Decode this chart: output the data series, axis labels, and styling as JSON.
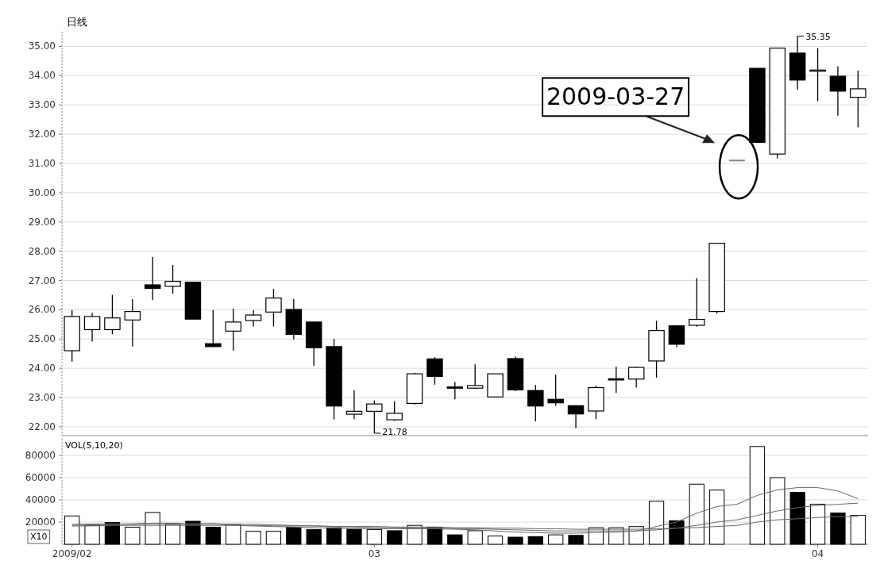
{
  "chart_data": [
    {
      "type": "candlestick",
      "title": "日线",
      "categories": [
        null,
        null,
        null,
        null,
        null,
        null,
        null,
        null,
        null,
        null,
        null,
        null,
        null,
        null,
        null,
        null,
        null,
        null,
        null,
        null,
        null,
        null,
        null,
        null,
        null,
        null,
        null,
        null,
        null,
        null,
        null,
        null,
        null,
        null,
        null,
        null,
        null,
        null,
        null,
        null
      ],
      "ohlc": [
        [
          24.6,
          25.99,
          24.23,
          25.77
        ],
        [
          25.32,
          25.89,
          24.91,
          25.77
        ],
        [
          25.32,
          26.51,
          25.16,
          25.72
        ],
        [
          25.65,
          26.36,
          24.74,
          25.94
        ],
        [
          26.85,
          27.8,
          26.33,
          26.73
        ],
        [
          26.8,
          27.53,
          26.55,
          26.97
        ],
        [
          26.94,
          26.94,
          25.68,
          25.68
        ],
        [
          24.84,
          25.99,
          24.72,
          24.74
        ],
        [
          25.27,
          26.04,
          24.6,
          25.58
        ],
        [
          25.63,
          25.99,
          25.43,
          25.82
        ],
        [
          25.92,
          26.71,
          25.43,
          26.4
        ],
        [
          26.01,
          26.36,
          24.98,
          25.16
        ],
        [
          25.58,
          25.58,
          24.08,
          24.7
        ],
        [
          24.74,
          25.01,
          22.25,
          22.71
        ],
        [
          22.43,
          23.25,
          22.26,
          22.53
        ],
        [
          22.53,
          22.9,
          21.78,
          22.78
        ],
        [
          22.24,
          22.87,
          22.2,
          22.46
        ],
        [
          22.8,
          23.85,
          22.76,
          23.81
        ],
        [
          24.32,
          24.38,
          23.44,
          23.72
        ],
        [
          23.34,
          23.53,
          22.94,
          23.3
        ],
        [
          23.32,
          24.13,
          23.3,
          23.41
        ],
        [
          23.02,
          23.81,
          23.02,
          23.81
        ],
        [
          24.33,
          24.4,
          23.22,
          23.26
        ],
        [
          23.24,
          23.43,
          22.19,
          22.71
        ],
        [
          22.94,
          23.78,
          22.72,
          22.82
        ],
        [
          22.72,
          22.74,
          21.95,
          22.44
        ],
        [
          22.54,
          23.41,
          22.26,
          23.34
        ],
        [
          23.62,
          24.05,
          23.16,
          23.58
        ],
        [
          23.63,
          24.05,
          23.34,
          24.03
        ],
        [
          24.25,
          25.62,
          23.68,
          25.29
        ],
        [
          25.45,
          25.47,
          24.72,
          24.82
        ],
        [
          25.47,
          27.08,
          25.42,
          25.67
        ],
        [
          25.94,
          28.27,
          25.87,
          28.27
        ],
        [
          31.1,
          31.1,
          31.1,
          31.1
        ],
        [
          34.25,
          34.25,
          31.72,
          31.72
        ],
        [
          31.32,
          34.94,
          31.17,
          34.94
        ],
        [
          34.77,
          35.35,
          33.52,
          33.85
        ],
        [
          34.17,
          34.94,
          33.13,
          34.17
        ],
        [
          33.98,
          34.32,
          32.63,
          33.47
        ],
        [
          33.26,
          34.17,
          32.23,
          33.55
        ]
      ],
      "colors": [
        "#ffffff",
        "#ffffff",
        "#ffffff",
        "#ffffff",
        "#000000",
        "#ffffff",
        "#000000",
        "#000000",
        "#ffffff",
        "#ffffff",
        "#ffffff",
        "#000000",
        "#000000",
        "#000000",
        "#ffffff",
        "#ffffff",
        "#ffffff",
        "#ffffff",
        "#000000",
        "#000000",
        "#ffffff",
        "#ffffff",
        "#000000",
        "#000000",
        "#000000",
        "#000000",
        "#ffffff",
        "#000000",
        "#ffffff",
        "#ffffff",
        "#000000",
        "#ffffff",
        "#ffffff",
        "#888888",
        "#000000",
        "#ffffff",
        "#000000",
        "#ffffff",
        "#000000",
        "#ffffff"
      ],
      "ylim": [
        21.7,
        35.5
      ],
      "yticks": [
        {
          "value": 22,
          "label": "22.00"
        },
        {
          "value": 23,
          "label": "23.00"
        },
        {
          "value": 24,
          "label": "24.00"
        },
        {
          "value": 25,
          "label": "25.00"
        },
        {
          "value": 26,
          "label": "26.00"
        },
        {
          "value": 27,
          "label": "27.00"
        },
        {
          "value": 28,
          "label": "28.00"
        },
        {
          "value": 29,
          "label": "29.00"
        },
        {
          "value": 30,
          "label": "30.00"
        },
        {
          "value": 31,
          "label": "31.00"
        },
        {
          "value": 32,
          "label": "32.00"
        },
        {
          "value": 33,
          "label": "33.00"
        },
        {
          "value": 34,
          "label": "34.00"
        },
        {
          "value": 35,
          "label": "35.00"
        }
      ],
      "grid": "y",
      "tick_labels": "y",
      "annotations": [
        "2009-03-27",
        "35.35",
        "21.78"
      ]
    },
    {
      "type": "bar",
      "categories": [
        "2009/02",
        null,
        null,
        null,
        null,
        null,
        null,
        null,
        null,
        null,
        null,
        null,
        null,
        null,
        null,
        "03",
        null,
        null,
        null,
        null,
        null,
        null,
        null,
        null,
        null,
        null,
        null,
        null,
        null,
        null,
        null,
        null,
        null,
        null,
        null,
        null,
        null,
        "04",
        null,
        null
      ],
      "series": [
        {
          "type": "bar",
          "values": [
            25500,
            17000,
            19600,
            15400,
            28600,
            18000,
            20700,
            15400,
            18000,
            11700,
            11700,
            15400,
            13300,
            14900,
            13800,
            13300,
            12200,
            17000,
            15400,
            8500,
            12200,
            7400,
            6400,
            6900,
            8500,
            8000,
            14900,
            14900,
            15900,
            38700,
            21200,
            54100,
            48800,
            null,
            88000,
            60000,
            46700,
            36100,
            28100,
            26000
          ],
          "colors": [
            "#ffffff",
            "#ffffff",
            "#000000",
            "#ffffff",
            "#ffffff",
            "#ffffff",
            "#000000",
            "#000000",
            "#ffffff",
            "#ffffff",
            "#ffffff",
            "#000000",
            "#000000",
            "#000000",
            "#000000",
            "#ffffff",
            "#000000",
            "#ffffff",
            "#000000",
            "#000000",
            "#ffffff",
            "#ffffff",
            "#000000",
            "#000000",
            "#ffffff",
            "#000000",
            "#ffffff",
            "#ffffff",
            "#ffffff",
            "#ffffff",
            "#000000",
            "#ffffff",
            "#ffffff",
            null,
            "#ffffff",
            "#ffffff",
            "#000000",
            "#ffffff",
            "#000000",
            "#ffffff"
          ]
        },
        {
          "type": "line",
          "color": "#666666",
          "values": [
            17000,
            17500,
            18000,
            18500,
            19000,
            19000,
            18000,
            18500,
            17000,
            16500,
            16000,
            15500,
            15000,
            14500,
            14000,
            14000,
            14000,
            14000,
            14000,
            13500,
            13000,
            12000,
            11000,
            10500,
            10000,
            10000,
            10500,
            11000,
            12000,
            16000,
            20000,
            28000,
            34000,
            36000,
            44000,
            49000,
            51000,
            51000,
            48000,
            41000
          ]
        },
        {
          "type": "line",
          "color": "#666666",
          "values": [
            18000,
            18200,
            18400,
            18000,
            18500,
            18500,
            18500,
            18500,
            18000,
            18000,
            17500,
            17000,
            16500,
            16000,
            15500,
            15000,
            15000,
            14500,
            14500,
            14000,
            14000,
            13500,
            13000,
            12500,
            12000,
            12000,
            12000,
            12000,
            12000,
            13000,
            14500,
            17000,
            20000,
            22000,
            26000,
            30000,
            33000,
            35000,
            36000,
            37000
          ]
        },
        {
          "type": "line",
          "color": "#666666",
          "values": [
            16500,
            16500,
            17000,
            17000,
            17000,
            17000,
            17000,
            17000,
            17000,
            17000,
            16500,
            16500,
            16500,
            16000,
            16000,
            16000,
            15500,
            15500,
            15500,
            15000,
            15000,
            14500,
            14500,
            14000,
            14000,
            13500,
            13500,
            13500,
            13500,
            14000,
            14500,
            15000,
            16000,
            17000,
            20000,
            22000,
            23000,
            24000,
            25000,
            25000
          ]
        }
      ],
      "ylim": [
        0,
        95000
      ],
      "yticks": [
        20000,
        40000,
        60000,
        80000
      ],
      "grid": "y",
      "annotations": [
        "VOL(5,10,20)",
        "X10"
      ]
    }
  ]
}
